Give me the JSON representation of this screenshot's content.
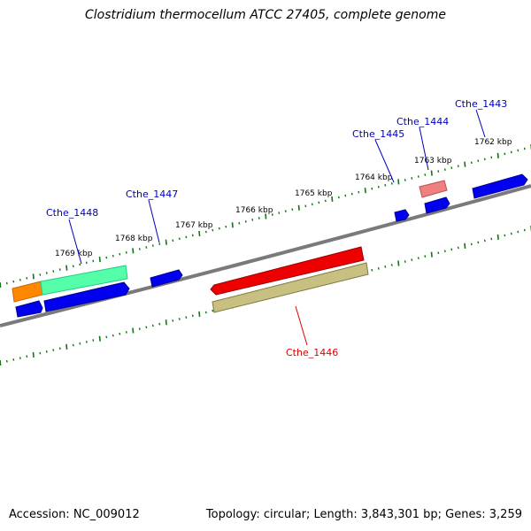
{
  "title": "Clostridium thermocellum ATCC 27405, complete genome",
  "accession": "Accession: NC_009012",
  "summary": "Topology: circular; Length: 3,843,301 bp; Genes: 3,259",
  "colors": {
    "backbone": "#808080",
    "tick": "#117711",
    "blue_gene": "#0000ee",
    "label_blue": "#0000bb",
    "label_red": "#dd0000"
  },
  "scale_labels": [
    "1769 kbp",
    "1768 kbp",
    "1767 kbp",
    "1766 kbp",
    "1765 kbp",
    "1764 kbp",
    "1763 kbp",
    "1762 kbp"
  ],
  "gene_labels": [
    {
      "id": "Cthe_1448",
      "color": "#0000bb"
    },
    {
      "id": "Cthe_1447",
      "color": "#0000bb"
    },
    {
      "id": "Cthe_1446",
      "color": "#dd0000"
    },
    {
      "id": "Cthe_1445",
      "color": "#0000bb"
    },
    {
      "id": "Cthe_1444",
      "color": "#0000bb"
    },
    {
      "id": "Cthe_1443",
      "color": "#0000bb"
    }
  ]
}
